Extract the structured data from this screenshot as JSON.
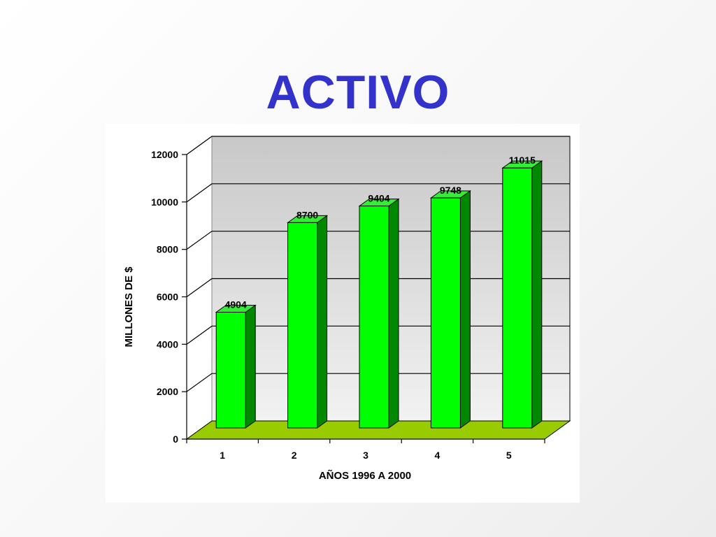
{
  "slide": {
    "title": "ACTIVO"
  },
  "chart_data": {
    "type": "bar",
    "style": "3d",
    "categories": [
      "1",
      "2",
      "3",
      "4",
      "5"
    ],
    "values": [
      4904,
      8700,
      9404,
      9748,
      11015
    ],
    "data_labels": [
      "4904",
      "8700",
      "9404",
      "9748",
      "11015"
    ],
    "xlabel": "AÑOS 1996 A 2000",
    "ylabel": "MILLONES DE $",
    "ylim": [
      0,
      12000
    ],
    "yticks": [
      0,
      2000,
      4000,
      6000,
      8000,
      10000,
      12000
    ],
    "ytick_labels": [
      "0",
      "2000",
      "4000",
      "6000",
      "8000",
      "10000",
      "12000"
    ],
    "grid": true,
    "legend": "none",
    "colors": {
      "bar_front": "#00ff00",
      "bar_side": "#008800",
      "bar_top": "#33ee33",
      "floor": "#99cc00",
      "back_wall_top": "#c8c8c8",
      "back_wall_bottom": "#f2f2f2",
      "side_wall": "#ffffff"
    }
  }
}
